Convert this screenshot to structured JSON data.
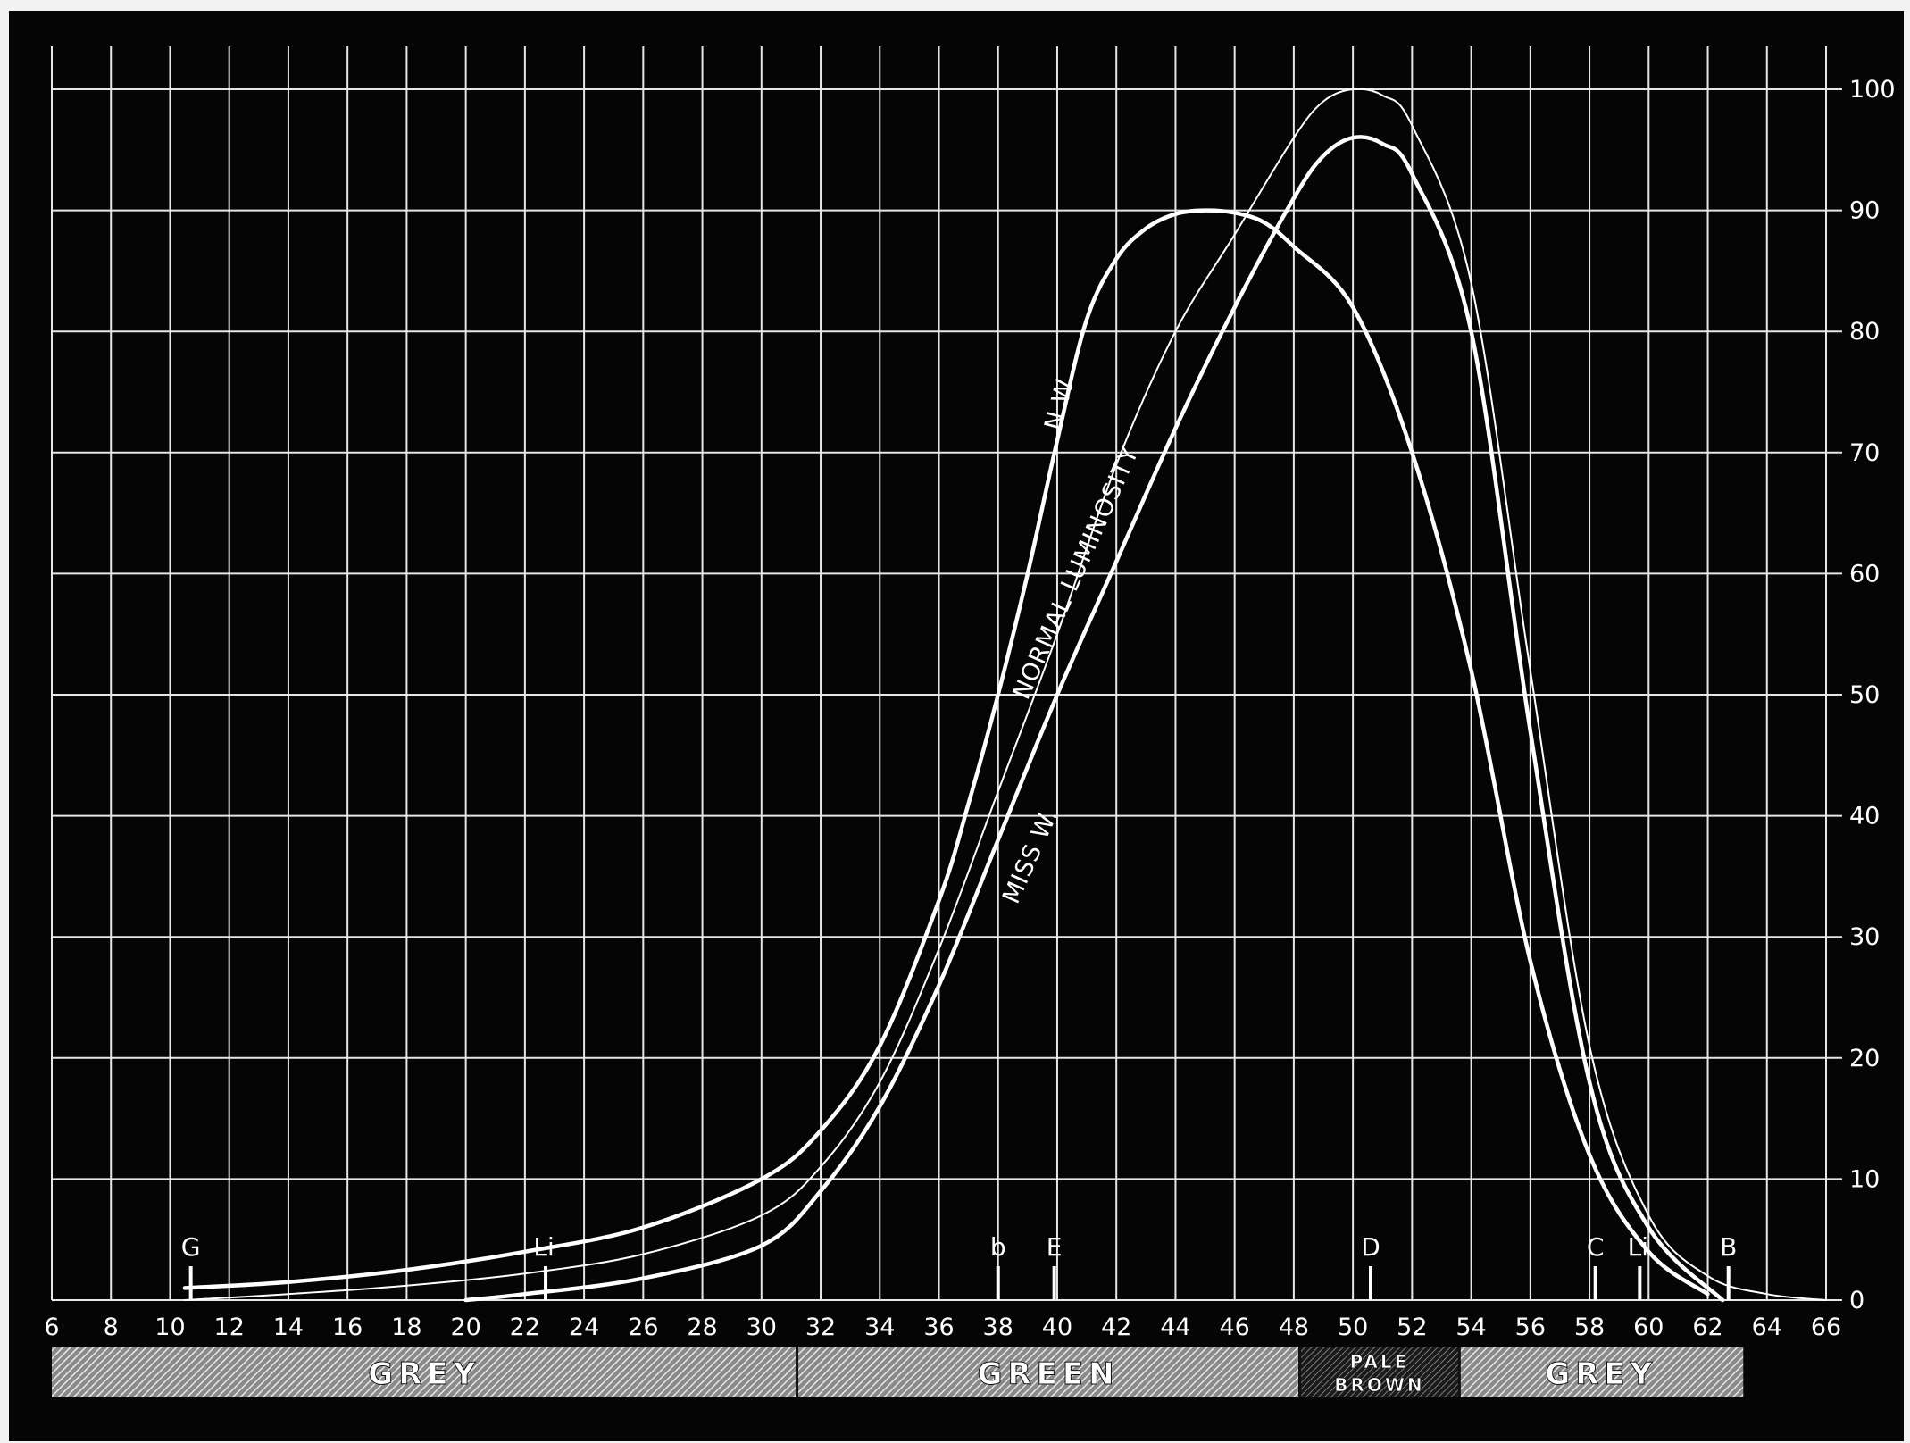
{
  "chart_data": {
    "type": "line",
    "title": "",
    "xlabel": "",
    "ylabel": "",
    "xlim": [
      6,
      66
    ],
    "ylim": [
      0,
      100
    ],
    "grid": true,
    "x_ticks": [
      6,
      8,
      10,
      12,
      14,
      16,
      18,
      20,
      22,
      24,
      26,
      28,
      30,
      32,
      34,
      36,
      38,
      40,
      42,
      44,
      46,
      48,
      50,
      52,
      54,
      56,
      58,
      60,
      62,
      64,
      66
    ],
    "y_ticks": [
      0,
      10,
      20,
      30,
      40,
      50,
      60,
      70,
      80,
      90,
      100
    ],
    "series": [
      {
        "name": "N W",
        "stroke": "heavy",
        "x": [
          10.5,
          14,
          18,
          22,
          26,
          30,
          32,
          34,
          36,
          37,
          38,
          39,
          40,
          41,
          42,
          43,
          44,
          45,
          46,
          47,
          48,
          50,
          52,
          54,
          56,
          58,
          60,
          62
        ],
        "y": [
          1,
          1.5,
          2.5,
          4,
          6,
          10,
          14,
          21,
          33,
          41,
          50,
          60,
          71,
          81,
          86,
          88.5,
          89.7,
          90,
          89.8,
          89,
          87,
          82,
          70,
          52,
          28,
          12,
          4,
          0.5
        ]
      },
      {
        "name": "NORMAL LUMINOSITY",
        "stroke": "thin",
        "x": [
          10.5,
          14,
          18,
          22,
          26,
          30,
          32,
          34,
          36,
          38,
          40,
          42,
          44,
          46,
          48,
          49,
          50,
          51,
          52,
          54,
          56,
          58,
          60,
          62,
          64,
          66
        ],
        "y": [
          0,
          0.5,
          1.2,
          2.2,
          3.8,
          7,
          11,
          18,
          29,
          42,
          55,
          69,
          80,
          88,
          96,
          99,
          100,
          99.5,
          97,
          84,
          52,
          21,
          7,
          2,
          0.5,
          0
        ]
      },
      {
        "name": "MISS W.",
        "stroke": "heavy",
        "x": [
          20,
          22,
          26,
          30,
          32,
          34,
          36,
          38,
          40,
          42,
          44,
          46,
          48,
          49,
          50,
          51,
          52,
          54,
          56,
          58,
          60,
          62.5
        ],
        "y": [
          0,
          0.5,
          1.8,
          4.5,
          9,
          16,
          26,
          38,
          50,
          61,
          72,
          82,
          91,
          94.5,
          96,
          95.5,
          93,
          80,
          47,
          18,
          6,
          0
        ]
      }
    ],
    "markers": [
      {
        "label": "G",
        "x": 10.7
      },
      {
        "label": "Li",
        "x": 22.7
      },
      {
        "label": "b",
        "x": 38
      },
      {
        "label": "E",
        "x": 39.9
      },
      {
        "label": "D",
        "x": 50.6
      },
      {
        "label": "C",
        "x": 58.2
      },
      {
        "label": "Li",
        "x": 59.7
      },
      {
        "label": "B",
        "x": 62.7
      }
    ],
    "color_bands": [
      {
        "label": "GREY",
        "from": 6,
        "to": 31.2
      },
      {
        "label": "GREEN",
        "from": 31.2,
        "to": 48.2
      },
      {
        "label": "PALE BROWN",
        "from": 48.2,
        "to": 53.6
      },
      {
        "label": "GREY",
        "from": 53.6,
        "to": 63.2
      }
    ]
  }
}
